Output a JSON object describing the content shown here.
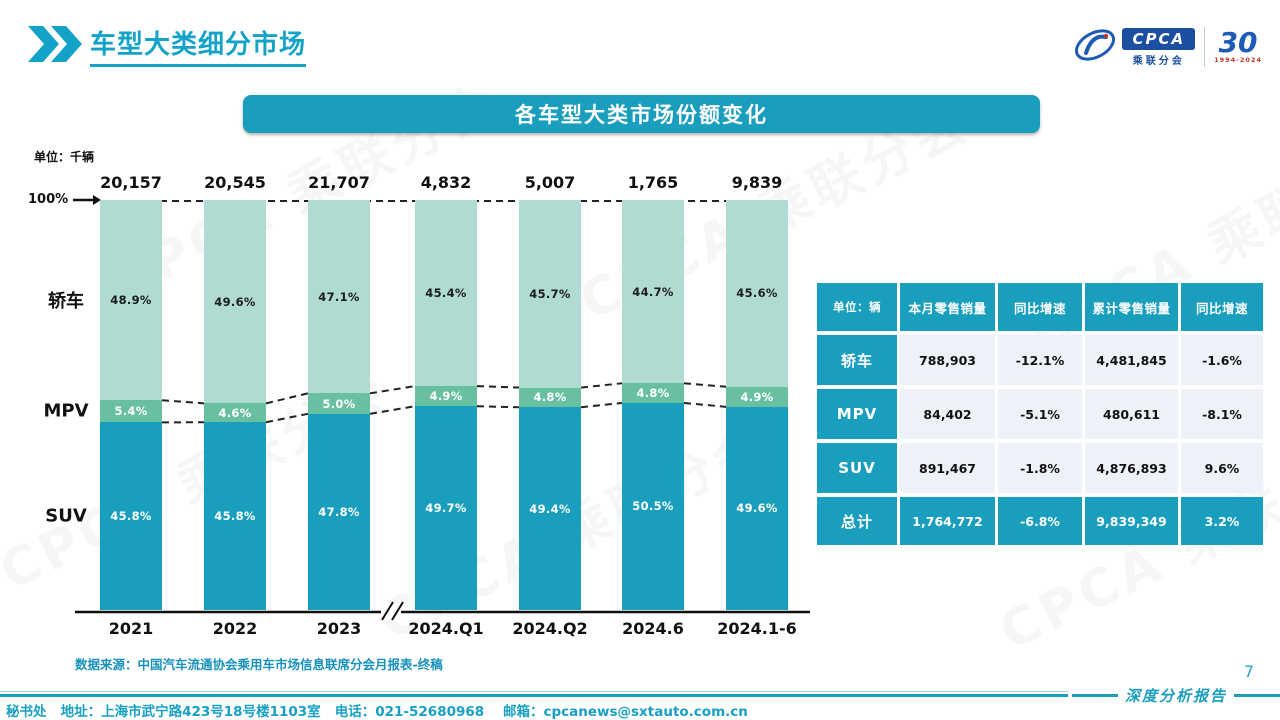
{
  "page": {
    "title": "车型大类细分市场",
    "page_number": "7",
    "report_label": "深度分析报告",
    "source_note": "数据来源：中国汽车流通协会乘用车市场信息联席分会月报表-终稿",
    "footer": "秘书处   地址：上海市武宁路423号18号楼1103室   电话：021-52680968    邮箱：cpcanews@sxtauto.com.cn"
  },
  "logo": {
    "cpca": "CPCA",
    "cpca_sub": "乘联分会",
    "anniversary": "30",
    "anniversary_years": "1994-2024"
  },
  "chart_title": "各车型大类市场份额变化",
  "chart_data": {
    "type": "stacked-bar-100pct",
    "unit_label": "单位：千辆",
    "axis_label_100": "100%",
    "categories": [
      "2021",
      "2022",
      "2023",
      "2024.Q1",
      "2024.Q2",
      "2024.6",
      "2024.1-6"
    ],
    "totals": [
      "20,157",
      "20,545",
      "21,707",
      "4,832",
      "5,007",
      "1,765",
      "9,839"
    ],
    "series": [
      {
        "name": "轿车",
        "color": "#b0dbd3",
        "text_color": "#1c1c1c",
        "values": [
          48.9,
          49.6,
          47.1,
          45.4,
          45.7,
          44.7,
          45.6
        ]
      },
      {
        "name": "MPV",
        "color": "#68c0a0",
        "text_color": "#ffffff",
        "values": [
          5.4,
          4.6,
          5.0,
          4.9,
          4.8,
          4.8,
          4.9
        ]
      },
      {
        "name": "SUV",
        "color": "#1a9ebd",
        "text_color": "#ffffff",
        "values": [
          45.8,
          45.8,
          47.8,
          49.7,
          49.4,
          50.5,
          49.6
        ]
      }
    ],
    "axis_break_after": "2023",
    "legend_position": "left",
    "grid": false
  },
  "table": {
    "headers": [
      "单位：辆",
      "本月零售销量",
      "同比增速",
      "累计零售销量",
      "同比增速"
    ],
    "rows": [
      {
        "label": "轿车",
        "cells": [
          "788,903",
          "-12.1%",
          "4,481,845",
          "-1.6%"
        ]
      },
      {
        "label": "MPV",
        "cells": [
          "84,402",
          "-5.1%",
          "480,611",
          "-8.1%"
        ]
      },
      {
        "label": "SUV",
        "cells": [
          "891,467",
          "-1.8%",
          "4,876,893",
          "9.6%"
        ]
      }
    ],
    "total_row": {
      "label": "总计",
      "cells": [
        "1,764,772",
        "-6.8%",
        "9,839,349",
        "3.2%"
      ]
    }
  },
  "colors": {
    "accent_teal": "#1a9ebd",
    "sedan_segment": "#b0dbd3",
    "mpv_segment": "#68c0a0",
    "title_text": "#13a3c7",
    "table_cell_bg": "#eef2f8"
  },
  "watermark_text": "CPCA 乘联分会"
}
